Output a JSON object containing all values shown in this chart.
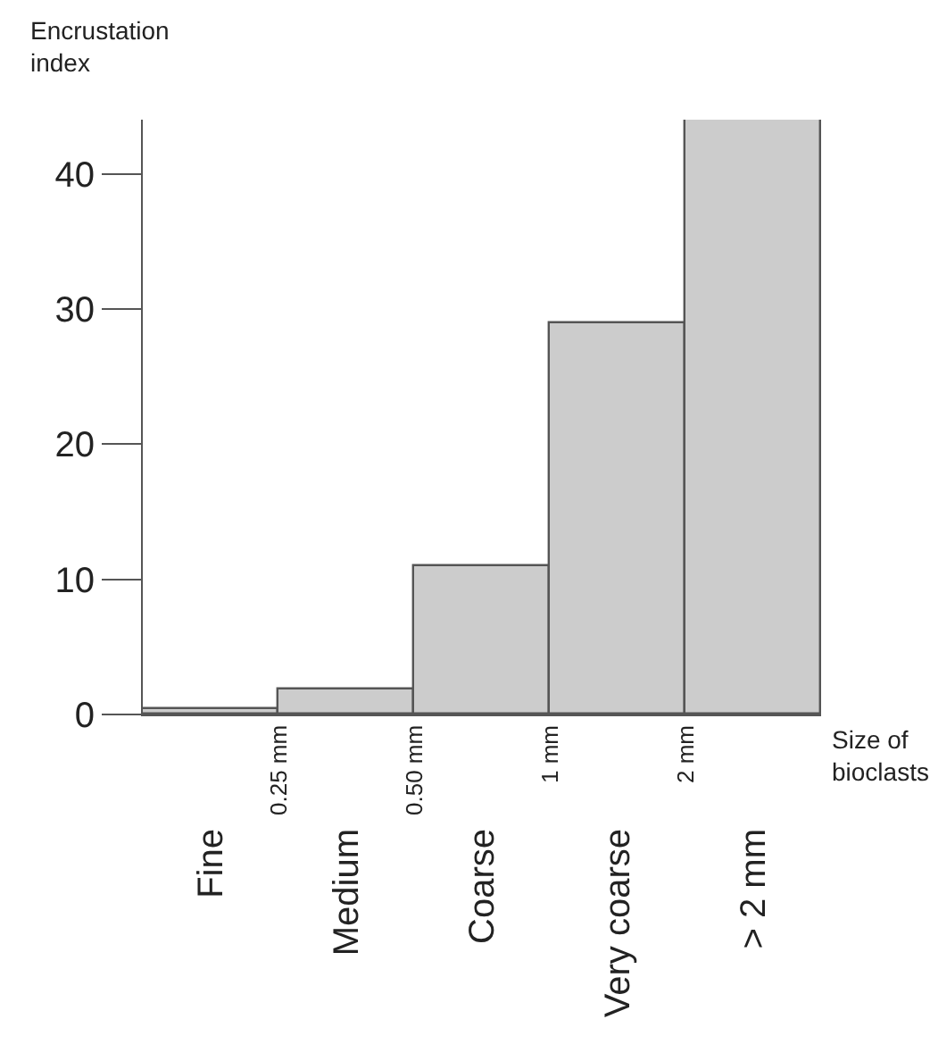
{
  "chart_data": {
    "type": "bar",
    "xlabel": "Size of bioclasts",
    "ylabel": "Encrustation index",
    "categories": [
      "Fine",
      "Medium",
      "Coarse",
      "Very coarse",
      "> 2 mm"
    ],
    "values": [
      0.4,
      1.9,
      11,
      29,
      44
    ],
    "color": "#cccccc",
    "ylim": [
      0,
      44
    ],
    "yticks": [
      0,
      10,
      20,
      30,
      40
    ],
    "annotations": [
      "0.25 mm",
      "0.50 mm",
      "1 mm",
      "2 mm"
    ]
  }
}
